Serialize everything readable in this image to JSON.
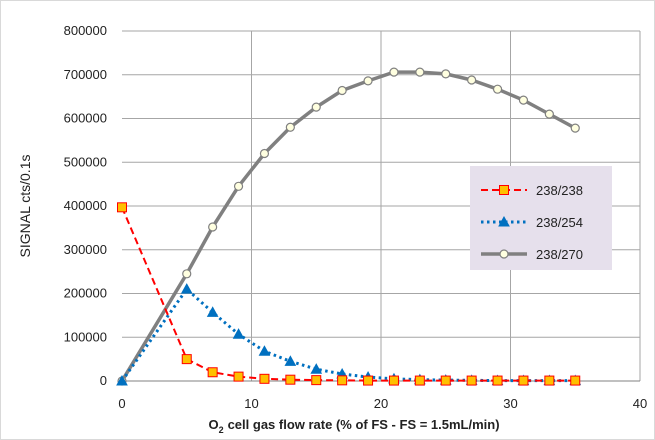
{
  "chart_data": {
    "type": "line",
    "ylabel": "SIGNAL   cts/0.1s",
    "xlabel": "cell gas flow rate (% of FS - FS = 1.5mL/min)",
    "xlabel_prefix": "O",
    "xlabel_sub": "2",
    "xlim": [
      0,
      40
    ],
    "ylim": [
      0,
      800000
    ],
    "xticks": [
      0,
      10,
      20,
      30,
      40
    ],
    "yticks": [
      0,
      100000,
      200000,
      300000,
      400000,
      500000,
      600000,
      700000,
      800000
    ],
    "grid": true,
    "legend_position": "right",
    "series": [
      {
        "name": "238/238",
        "color": "#ff0000",
        "marker": "square",
        "marker_fill": "#ffc000",
        "line_style": "dashed",
        "x": [
          0,
          5,
          7,
          9,
          11,
          13,
          15,
          17,
          19,
          21,
          23,
          25,
          27,
          29,
          31,
          33,
          35
        ],
        "y": [
          397000,
          50000,
          20000,
          10000,
          5000,
          3000,
          2000,
          1500,
          1000,
          1000,
          1000,
          1000,
          1000,
          1000,
          1000,
          1000,
          1000
        ]
      },
      {
        "name": "238/254",
        "color": "#0070c0",
        "marker": "triangle",
        "marker_fill": "#0070c0",
        "line_style": "dotted",
        "x": [
          0,
          5,
          7,
          9,
          11,
          13,
          15,
          17,
          19,
          21,
          23,
          25,
          27,
          29,
          31,
          33,
          35
        ],
        "y": [
          0,
          210000,
          157000,
          107000,
          68000,
          45000,
          27000,
          16000,
          9000,
          5000,
          3000,
          2000,
          1500,
          1000,
          1000,
          1000,
          1000
        ]
      },
      {
        "name": "238/270",
        "color": "#808080",
        "marker": "circle",
        "marker_fill": "#ffffe0",
        "line_style": "solid",
        "x": [
          0,
          5,
          7,
          9,
          11,
          13,
          15,
          17,
          19,
          21,
          23,
          25,
          27,
          29,
          31,
          33,
          35
        ],
        "y": [
          0,
          245000,
          352000,
          445000,
          520000,
          580000,
          626000,
          664000,
          686000,
          706000,
          706000,
          702000,
          688000,
          667000,
          642000,
          610000,
          578000
        ]
      }
    ]
  }
}
